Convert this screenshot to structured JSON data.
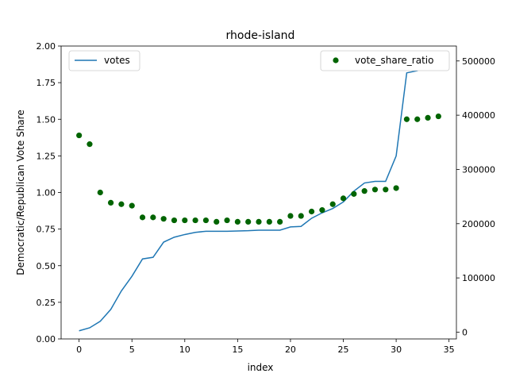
{
  "chart_data": {
    "type": "line",
    "title": "rhode-island",
    "xlabel": "index",
    "ylabel": "Democratic/Republican Vote Share",
    "y2label": "",
    "xlim": [
      -1.7,
      35.7
    ],
    "ylim": [
      0.0,
      2.0
    ],
    "y2lim": [
      -12500,
      527500
    ],
    "xticks": [
      0,
      5,
      10,
      15,
      20,
      25,
      30,
      35
    ],
    "yticks": [
      0.0,
      0.25,
      0.5,
      0.75,
      1.0,
      1.25,
      1.5,
      1.75,
      2.0
    ],
    "y2ticks": [
      0,
      100000,
      200000,
      300000,
      400000,
      500000
    ],
    "x": [
      0,
      1,
      2,
      3,
      4,
      5,
      6,
      7,
      8,
      9,
      10,
      11,
      12,
      13,
      14,
      15,
      16,
      17,
      18,
      19,
      20,
      21,
      22,
      23,
      24,
      25,
      26,
      27,
      28,
      29,
      30,
      31,
      32,
      33,
      34
    ],
    "series": [
      {
        "name": "votes",
        "kind": "line",
        "axis": "right",
        "color": "#1f77b4",
        "values": [
          2500,
          8000,
          20000,
          42000,
          76000,
          103000,
          135000,
          138000,
          166000,
          175000,
          180000,
          184000,
          186000,
          186000,
          186000,
          186500,
          187000,
          188000,
          188000,
          188000,
          194000,
          195000,
          210000,
          220000,
          228000,
          240000,
          260000,
          275000,
          278000,
          278000,
          325000,
          478000,
          482000,
          498000,
          505000
        ]
      },
      {
        "name": "vote_share_ratio",
        "kind": "scatter",
        "axis": "left",
        "color": "#006400",
        "values": [
          1.39,
          1.33,
          1.0,
          0.93,
          0.92,
          0.91,
          0.83,
          0.83,
          0.82,
          0.81,
          0.81,
          0.81,
          0.81,
          0.8,
          0.81,
          0.8,
          0.8,
          0.8,
          0.8,
          0.8,
          0.84,
          0.84,
          0.87,
          0.88,
          0.92,
          0.96,
          0.99,
          1.01,
          1.02,
          1.02,
          1.03,
          1.5,
          1.5,
          1.51,
          1.52
        ]
      }
    ],
    "legend": {
      "left": "upper left",
      "right": "upper right"
    },
    "grid": false
  }
}
